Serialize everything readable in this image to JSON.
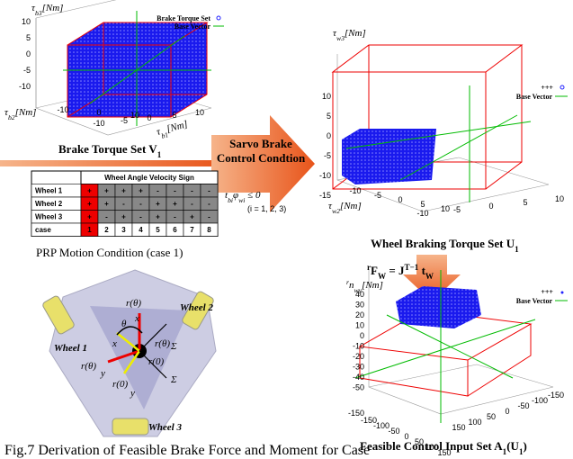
{
  "plot_v": {
    "z_label": {
      "sym": "τ",
      "sub": "b3",
      "unit": "[Nm]"
    },
    "y_label": {
      "sym": "τ",
      "sub": "b2",
      "unit": "[Nm]"
    },
    "x_label": {
      "sym": "τ",
      "sub": "b1",
      "unit": "[Nm]"
    },
    "zticks": [
      "10",
      "5",
      "0",
      "-5",
      "-10"
    ],
    "yticks": [
      "-10",
      "0",
      "10"
    ],
    "xticks": [
      "-10",
      "-5",
      "0",
      "5",
      "10"
    ],
    "legend": [
      "Brake Torque Set",
      "Base Vector"
    ],
    "caption": "Brake Torque Set ",
    "caption_sym": "V",
    "caption_sub": "1"
  },
  "arrow": {
    "line1": "Sarvo Brake",
    "line2": "Control Condtion",
    "condition": {
      "t": "t",
      "t_sub": "bi",
      "phi": "φ",
      "phi_sub": "wi",
      "rel": " ≤ 0"
    },
    "range": "(i = 1, 2, 3)"
  },
  "table": {
    "header": "Wheel Angle Velocity Sign",
    "rows": [
      [
        "Wheel 1",
        "+",
        "+",
        "+",
        "+",
        "-",
        "-",
        "-",
        "-"
      ],
      [
        "Wheel 2",
        "+",
        "+",
        "-",
        "-",
        "+",
        "+",
        "-",
        "-"
      ],
      [
        "Wheel 3",
        "+",
        "-",
        "+",
        "-",
        "+",
        "-",
        "+",
        "-"
      ],
      [
        "case",
        "1",
        "2",
        "3",
        "4",
        "5",
        "6",
        "7",
        "8"
      ]
    ],
    "caption": "PRP Motion Condition (case 1)"
  },
  "plot_u": {
    "z_label": {
      "sym": "τ",
      "sub": "w3",
      "unit": "[Nm]"
    },
    "y_label": {
      "sym": "τ",
      "sub": "w2",
      "unit": "[Nm]"
    },
    "zticks": [
      "10",
      "5",
      "0",
      "-5",
      "-10",
      "-15"
    ],
    "yticks": [
      "-10",
      "-5",
      "0",
      "5",
      "10"
    ],
    "xticks": [
      "-10",
      "-5",
      "0",
      "5",
      "10"
    ],
    "legend": [
      "+++",
      "Base Vector"
    ],
    "caption": "Wheel Braking Torque Set ",
    "caption_sym": "U",
    "caption_sub": "1"
  },
  "equation": {
    "lhs": "F",
    "lhs_sub": "W",
    "eq": " = J",
    "sup": "T−1",
    "rhs": " t",
    "rhs_sub": "W",
    "pre": "r"
  },
  "plot_a": {
    "z_label": {
      "sym": "n",
      "sub": "wy",
      "unit": "[Nm]",
      "pre": "r"
    },
    "zticks": [
      "40",
      "30",
      "20",
      "10",
      "0",
      "-10",
      "-20",
      "-30",
      "-40",
      "-50"
    ],
    "ztick_low": "-150",
    "yticks": [
      "-150",
      "-100",
      "-50",
      "0",
      "50",
      "100",
      "150"
    ],
    "xticks": [
      "150",
      "100",
      "50",
      "0",
      "-50",
      "-100",
      "-150"
    ],
    "legend": [
      "+++",
      "Base Vector"
    ],
    "caption": "Feasible Control Input Set ",
    "caption_sym": "A",
    "caption_sub": "1",
    "caption_arg": "(U",
    "caption_arg_sub": "1",
    "caption_end": ")"
  },
  "robot": {
    "wheels": [
      "Wheel 1",
      "Wheel 2",
      "Wheel 3"
    ],
    "r_theta": "r(θ)",
    "r_zero": "r(0)",
    "x": "x",
    "y": "y",
    "theta": "θ",
    "sigma": "Σ"
  },
  "figure_caption": "Fig.7    Derivation of Feasible Brake Force and Moment for Case"
}
